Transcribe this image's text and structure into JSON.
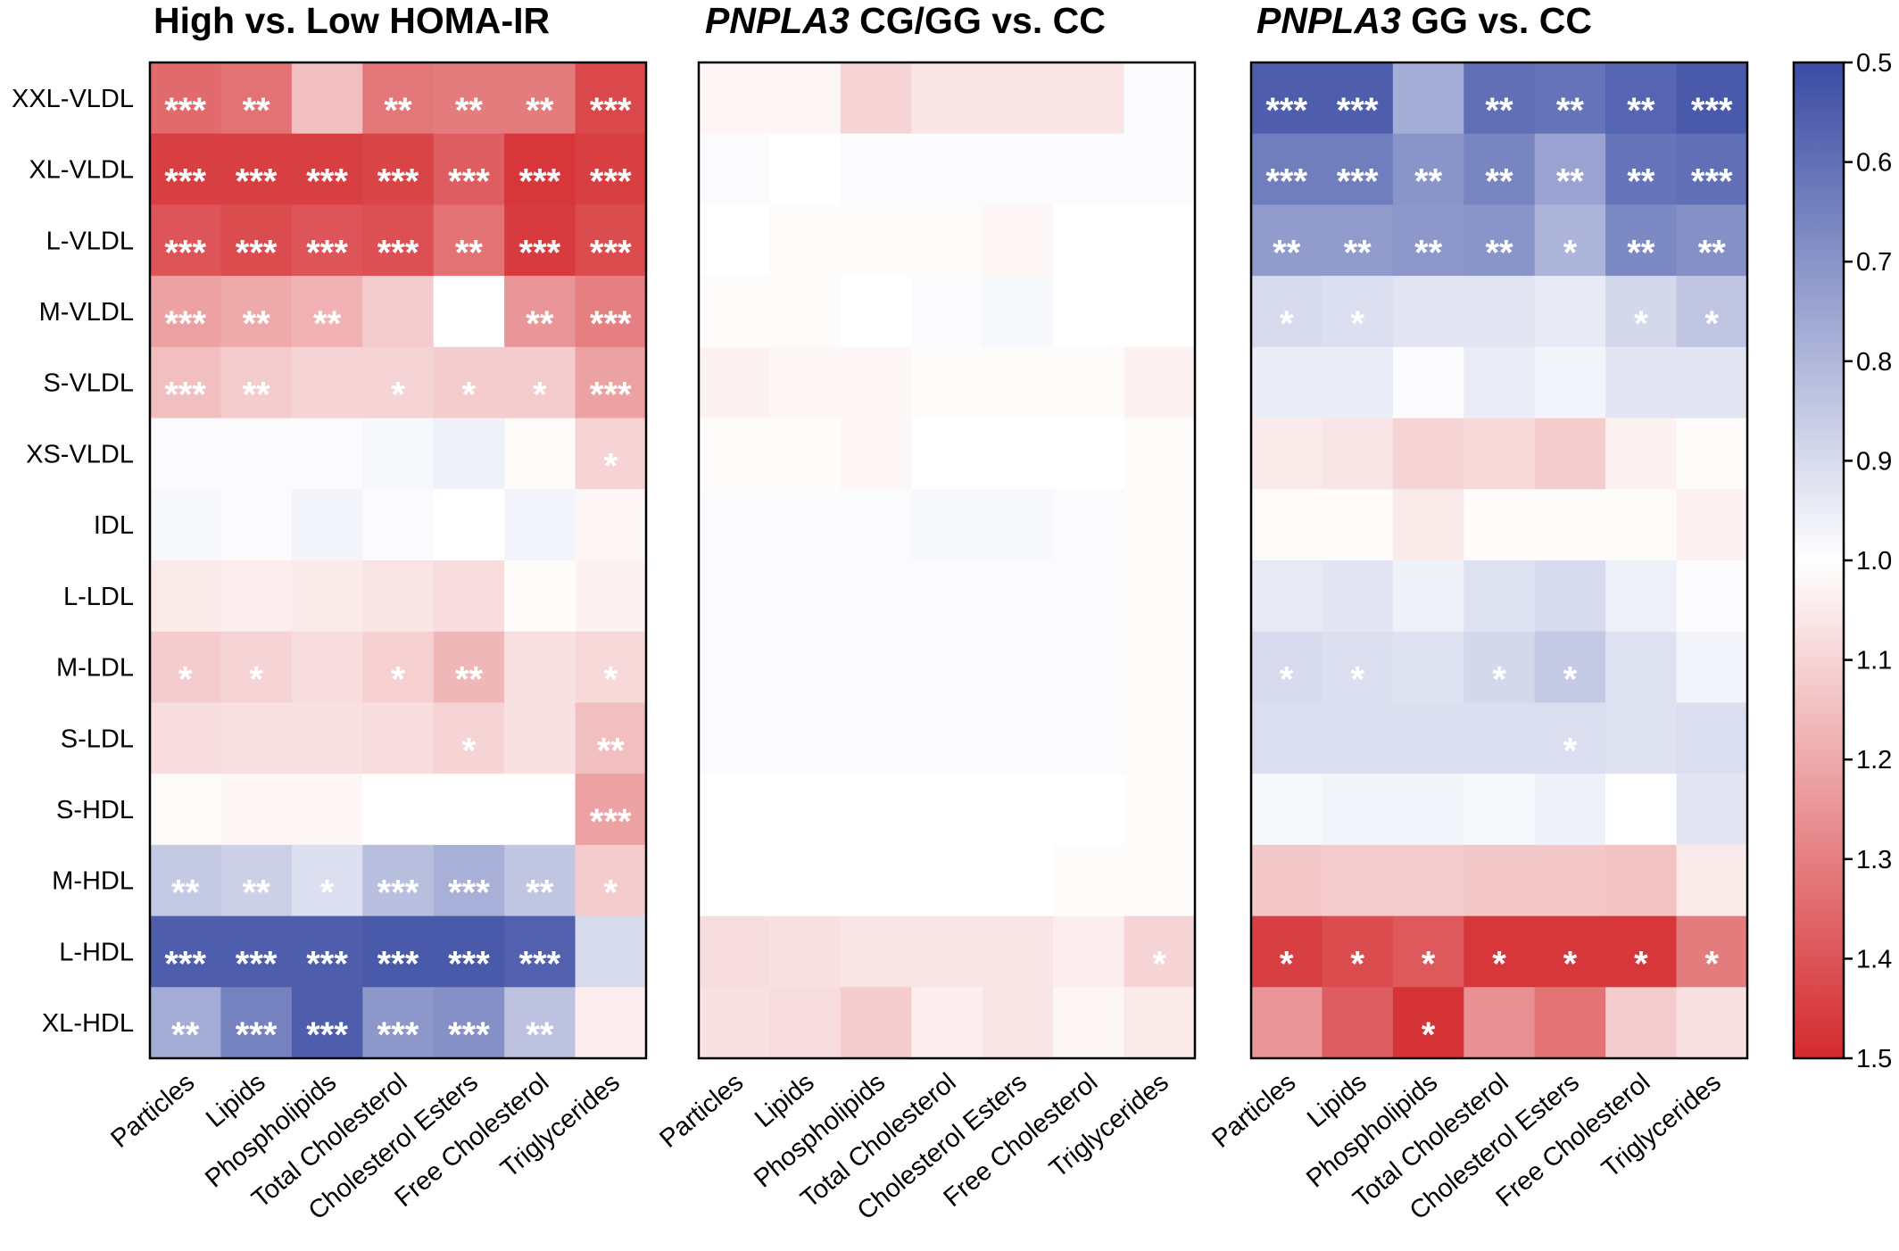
{
  "chart_data": [
    {
      "type": "heatmap",
      "title_main": "High vs. Low HOMA-IR",
      "title_italic": "",
      "rows": [
        "XXL-VLDL",
        "XL-VLDL",
        "L-VLDL",
        "M-VLDL",
        "S-VLDL",
        "XS-VLDL",
        "IDL",
        "L-LDL",
        "M-LDL",
        "S-LDL",
        "S-HDL",
        "M-HDL",
        "L-HDL",
        "XL-HDL"
      ],
      "columns": [
        "Particles",
        "Lipids",
        "Phospholipids",
        "Total Cholesterol",
        "Cholesterol Esters",
        "Free Cholesterol",
        "Triglycerides"
      ],
      "values": [
        [
          1.35,
          1.33,
          1.15,
          1.32,
          1.31,
          1.31,
          1.43
        ],
        [
          1.45,
          1.45,
          1.45,
          1.44,
          1.38,
          1.47,
          1.45
        ],
        [
          1.4,
          1.42,
          1.4,
          1.41,
          1.33,
          1.46,
          1.42
        ],
        [
          1.22,
          1.2,
          1.18,
          1.12,
          1.0,
          1.25,
          1.3
        ],
        [
          1.15,
          1.12,
          1.1,
          1.1,
          1.12,
          1.12,
          1.22
        ],
        [
          0.99,
          0.99,
          0.99,
          0.98,
          0.96,
          1.01,
          1.1
        ],
        [
          0.98,
          0.99,
          0.97,
          0.99,
          1.0,
          0.97,
          1.02
        ],
        [
          1.05,
          1.04,
          1.05,
          1.06,
          1.08,
          1.01,
          1.03
        ],
        [
          1.12,
          1.1,
          1.08,
          1.11,
          1.17,
          1.07,
          1.09
        ],
        [
          1.08,
          1.07,
          1.07,
          1.08,
          1.1,
          1.07,
          1.15
        ],
        [
          1.01,
          1.02,
          1.02,
          1.0,
          1.0,
          1.0,
          1.22
        ],
        [
          0.85,
          0.87,
          0.91,
          0.82,
          0.78,
          0.84,
          1.12
        ],
        [
          0.55,
          0.55,
          0.55,
          0.54,
          0.54,
          0.56,
          0.9
        ],
        [
          0.77,
          0.65,
          0.55,
          0.71,
          0.69,
          0.83,
          1.04
        ]
      ],
      "stars": [
        [
          "***",
          "**",
          "",
          "**",
          "**",
          "**",
          "***"
        ],
        [
          "***",
          "***",
          "***",
          "***",
          "***",
          "***",
          "***"
        ],
        [
          "***",
          "***",
          "***",
          "***",
          "**",
          "***",
          "***"
        ],
        [
          "***",
          "**",
          "**",
          "",
          "",
          "**",
          "***"
        ],
        [
          "***",
          "**",
          "",
          "*",
          "*",
          "*",
          "***"
        ],
        [
          "",
          "",
          "",
          "",
          "",
          "",
          "*"
        ],
        [
          "",
          "",
          "",
          "",
          "",
          "",
          ""
        ],
        [
          "",
          "",
          "",
          "",
          "",
          "",
          ""
        ],
        [
          "*",
          "*",
          "",
          "*",
          "**",
          "",
          "*"
        ],
        [
          "",
          "",
          "",
          "",
          "*",
          "",
          "**"
        ],
        [
          "",
          "",
          "",
          "",
          "",
          "",
          "***"
        ],
        [
          "**",
          "**",
          "*",
          "***",
          "***",
          "**",
          "*"
        ],
        [
          "***",
          "***",
          "***",
          "***",
          "***",
          "***",
          ""
        ],
        [
          "**",
          "***",
          "***",
          "***",
          "***",
          "**",
          ""
        ]
      ]
    },
    {
      "type": "heatmap",
      "title_main": " CG/GG vs. CC",
      "title_italic": "PNPLA3",
      "rows": [
        "XXL-VLDL",
        "XL-VLDL",
        "L-VLDL",
        "M-VLDL",
        "S-VLDL",
        "XS-VLDL",
        "IDL",
        "L-LDL",
        "M-LDL",
        "S-LDL",
        "S-HDL",
        "M-HDL",
        "L-HDL",
        "XL-HDL"
      ],
      "columns": [
        "Particles",
        "Lipids",
        "Phospholipids",
        "Total Cholesterol",
        "Cholesterol Esters",
        "Free Cholesterol",
        "Triglycerides"
      ],
      "values": [
        [
          1.02,
          1.02,
          1.1,
          1.06,
          1.06,
          1.06,
          0.99
        ],
        [
          0.99,
          1.0,
          0.99,
          0.99,
          0.99,
          0.99,
          0.99
        ],
        [
          1.0,
          1.01,
          1.01,
          1.01,
          1.02,
          1.0,
          1.0
        ],
        [
          1.01,
          1.01,
          1.0,
          0.99,
          0.98,
          1.0,
          1.0
        ],
        [
          1.03,
          1.02,
          1.02,
          1.01,
          1.01,
          1.01,
          1.03
        ],
        [
          1.01,
          1.01,
          1.02,
          1.0,
          1.0,
          1.0,
          1.01
        ],
        [
          0.99,
          0.99,
          0.99,
          0.98,
          0.98,
          0.99,
          1.01
        ],
        [
          0.99,
          0.99,
          0.99,
          0.99,
          0.99,
          0.99,
          1.01
        ],
        [
          0.99,
          0.99,
          0.99,
          0.99,
          0.99,
          0.99,
          1.01
        ],
        [
          0.99,
          0.99,
          0.99,
          0.99,
          0.99,
          0.99,
          1.01
        ],
        [
          1.0,
          1.0,
          1.0,
          1.0,
          1.0,
          1.0,
          1.01
        ],
        [
          1.0,
          1.0,
          1.0,
          1.0,
          1.0,
          1.01,
          1.01
        ],
        [
          1.08,
          1.07,
          1.06,
          1.06,
          1.06,
          1.04,
          1.1
        ],
        [
          1.07,
          1.08,
          1.12,
          1.04,
          1.06,
          1.02,
          1.05
        ]
      ],
      "stars": [
        [
          "",
          "",
          "",
          "",
          "",
          "",
          ""
        ],
        [
          "",
          "",
          "",
          "",
          "",
          "",
          ""
        ],
        [
          "",
          "",
          "",
          "",
          "",
          "",
          ""
        ],
        [
          "",
          "",
          "",
          "",
          "",
          "",
          ""
        ],
        [
          "",
          "",
          "",
          "",
          "",
          "",
          ""
        ],
        [
          "",
          "",
          "",
          "",
          "",
          "",
          ""
        ],
        [
          "",
          "",
          "",
          "",
          "",
          "",
          ""
        ],
        [
          "",
          "",
          "",
          "",
          "",
          "",
          ""
        ],
        [
          "",
          "",
          "",
          "",
          "",
          "",
          ""
        ],
        [
          "",
          "",
          "",
          "",
          "",
          "",
          ""
        ],
        [
          "",
          "",
          "",
          "",
          "",
          "",
          ""
        ],
        [
          "",
          "",
          "",
          "",
          "",
          "",
          ""
        ],
        [
          "",
          "",
          "",
          "",
          "",
          "",
          "*"
        ],
        [
          "",
          "",
          "",
          "",
          "",
          "",
          ""
        ]
      ]
    },
    {
      "type": "heatmap",
      "title_main": " GG vs. CC",
      "title_italic": "PNPLA3",
      "rows": [
        "XXL-VLDL",
        "XL-VLDL",
        "L-VLDL",
        "M-VLDL",
        "S-VLDL",
        "XS-VLDL",
        "IDL",
        "L-LDL",
        "M-LDL",
        "S-LDL",
        "S-HDL",
        "M-HDL",
        "L-HDL",
        "XL-HDL"
      ],
      "columns": [
        "Particles",
        "Lipids",
        "Phospholipids",
        "Total Cholesterol",
        "Cholesterol Esters",
        "Free Cholesterol",
        "Triglycerides"
      ],
      "values": [
        [
          0.55,
          0.55,
          0.77,
          0.6,
          0.61,
          0.57,
          0.54
        ],
        [
          0.64,
          0.64,
          0.7,
          0.66,
          0.74,
          0.61,
          0.6
        ],
        [
          0.72,
          0.72,
          0.71,
          0.7,
          0.79,
          0.67,
          0.69
        ],
        [
          0.9,
          0.91,
          0.93,
          0.93,
          0.94,
          0.89,
          0.84
        ],
        [
          0.95,
          0.95,
          0.99,
          0.95,
          0.97,
          0.93,
          0.93
        ],
        [
          1.05,
          1.06,
          1.1,
          1.09,
          1.12,
          1.03,
          1.01
        ],
        [
          1.01,
          1.01,
          1.05,
          1.01,
          1.01,
          1.01,
          1.03
        ],
        [
          0.94,
          0.93,
          0.96,
          0.92,
          0.9,
          0.96,
          0.99
        ],
        [
          0.9,
          0.91,
          0.92,
          0.89,
          0.85,
          0.92,
          0.97
        ],
        [
          0.91,
          0.91,
          0.91,
          0.91,
          0.91,
          0.92,
          0.91
        ],
        [
          0.98,
          0.97,
          0.97,
          0.98,
          0.96,
          1.0,
          0.93
        ],
        [
          1.13,
          1.12,
          1.12,
          1.13,
          1.13,
          1.14,
          1.05
        ],
        [
          1.45,
          1.42,
          1.39,
          1.47,
          1.47,
          1.47,
          1.31
        ],
        [
          1.25,
          1.38,
          1.48,
          1.26,
          1.33,
          1.12,
          1.07
        ]
      ],
      "stars": [
        [
          "***",
          "***",
          "",
          "**",
          "**",
          "**",
          "***"
        ],
        [
          "***",
          "***",
          "**",
          "**",
          "**",
          "**",
          "***"
        ],
        [
          "**",
          "**",
          "**",
          "**",
          "*",
          "**",
          "**"
        ],
        [
          "*",
          "*",
          "",
          "",
          "",
          "*",
          "*"
        ],
        [
          "",
          "",
          "",
          "",
          "",
          "",
          ""
        ],
        [
          "",
          "",
          "",
          "",
          "",
          "",
          ""
        ],
        [
          "",
          "",
          "",
          "",
          "",
          "",
          ""
        ],
        [
          "",
          "",
          "",
          "",
          "",
          "",
          ""
        ],
        [
          "*",
          "*",
          "",
          "*",
          "*",
          "",
          ""
        ],
        [
          "",
          "",
          "",
          "",
          "*",
          "",
          ""
        ],
        [
          "",
          "",
          "",
          "",
          "",
          "",
          ""
        ],
        [
          "",
          "",
          "",
          "",
          "",
          "",
          ""
        ],
        [
          "*",
          "*",
          "*",
          "*",
          "*",
          "*",
          "*"
        ],
        [
          "",
          "",
          "*",
          "",
          "",
          "",
          ""
        ]
      ]
    }
  ],
  "colorbar": {
    "range": [
      0.5,
      1.5
    ],
    "ticks": [
      "0.5",
      "0.6",
      "0.7",
      "0.8",
      "0.9",
      "1.0",
      "1.1",
      "1.2",
      "1.3",
      "1.4",
      "1.5"
    ],
    "colors": {
      "low": "#3a4ca4",
      "mid": "#ffffff",
      "high": "#d42a2e"
    }
  }
}
